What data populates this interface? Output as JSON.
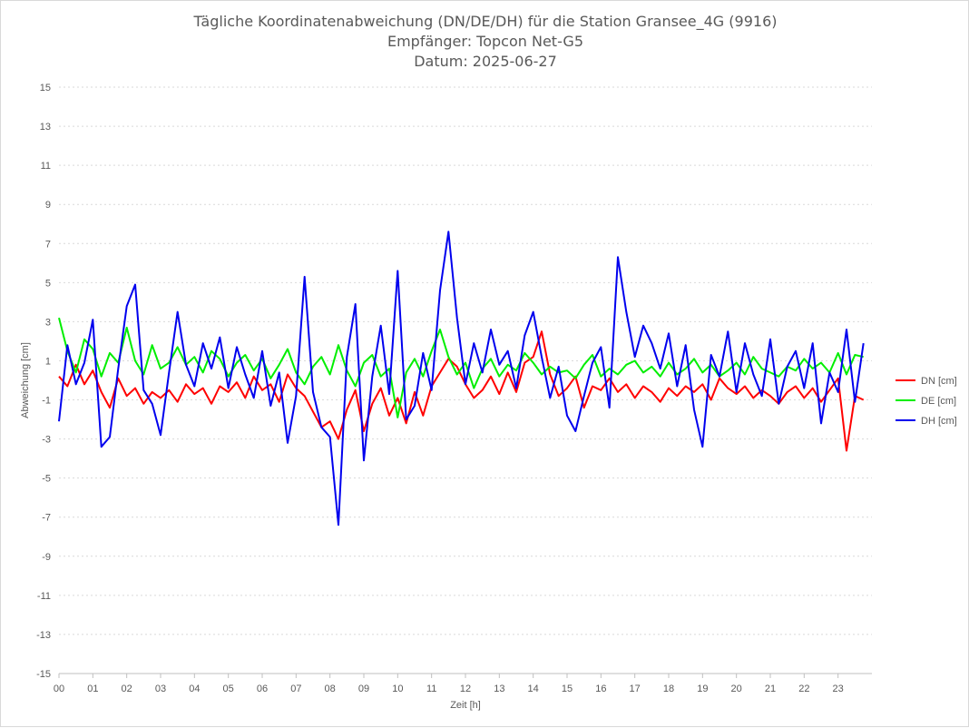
{
  "chart_data": {
    "type": "line",
    "title_lines": [
      "Tägliche Koordinatenabweichung (DN/DE/DH) für die Station Gransee_4G (9916)",
      "Empfänger: Topcon Net-G5",
      "Datum: 2025-06-27"
    ],
    "xlabel": "Zeit [h]",
    "ylabel": "Abweichung [cm]",
    "xlim": [
      0,
      24
    ],
    "ylim": [
      -15,
      15
    ],
    "x_ticks": [
      "00",
      "01",
      "02",
      "03",
      "04",
      "05",
      "06",
      "07",
      "08",
      "09",
      "10",
      "11",
      "12",
      "13",
      "14",
      "15",
      "16",
      "17",
      "18",
      "19",
      "20",
      "21",
      "22",
      "23"
    ],
    "y_ticks": [
      "15",
      "13",
      "11",
      "9",
      "7",
      "5",
      "3",
      "1",
      "-1",
      "-3",
      "-5",
      "-7",
      "-9",
      "-11",
      "-13",
      "-15"
    ],
    "grid": "horizontal dotted",
    "legend_position": "right",
    "x": [
      0.0,
      0.25,
      0.5,
      0.75,
      1.0,
      1.25,
      1.5,
      1.75,
      2.0,
      2.25,
      2.5,
      2.75,
      3.0,
      3.25,
      3.5,
      3.75,
      4.0,
      4.25,
      4.5,
      4.75,
      5.0,
      5.25,
      5.5,
      5.75,
      6.0,
      6.25,
      6.5,
      6.75,
      7.0,
      7.25,
      7.5,
      7.75,
      8.0,
      8.25,
      8.5,
      8.75,
      9.0,
      9.25,
      9.5,
      9.75,
      10.0,
      10.25,
      10.5,
      10.75,
      11.0,
      11.25,
      11.5,
      11.75,
      12.0,
      12.25,
      12.5,
      12.75,
      13.0,
      13.25,
      13.5,
      13.75,
      14.0,
      14.25,
      14.5,
      14.75,
      15.0,
      15.25,
      15.5,
      15.75,
      16.0,
      16.25,
      16.5,
      16.75,
      17.0,
      17.25,
      17.5,
      17.75,
      18.0,
      18.25,
      18.5,
      18.75,
      19.0,
      19.25,
      19.5,
      19.75,
      20.0,
      20.25,
      20.5,
      20.75,
      21.0,
      21.25,
      21.5,
      21.75,
      22.0,
      22.25,
      22.5,
      22.75,
      23.0,
      23.25,
      23.5,
      23.75
    ],
    "series": [
      {
        "name": "DN [cm]",
        "color": "#ff0000",
        "values": [
          0.2,
          -0.3,
          0.8,
          -0.2,
          0.5,
          -0.6,
          -1.4,
          0.1,
          -0.8,
          -0.4,
          -1.2,
          -0.6,
          -0.9,
          -0.5,
          -1.1,
          -0.2,
          -0.7,
          -0.4,
          -1.2,
          -0.3,
          -0.6,
          -0.1,
          -0.9,
          0.2,
          -0.5,
          -0.2,
          -1.1,
          0.3,
          -0.4,
          -0.8,
          -1.6,
          -2.4,
          -2.1,
          -3.0,
          -1.5,
          -0.5,
          -2.6,
          -1.2,
          -0.4,
          -1.8,
          -0.9,
          -2.2,
          -0.6,
          -1.8,
          -0.3,
          0.4,
          1.1,
          0.7,
          -0.2,
          -0.9,
          -0.5,
          0.2,
          -0.7,
          0.4,
          -0.6,
          0.9,
          1.2,
          2.5,
          0.3,
          -0.8,
          -0.4,
          0.2,
          -1.4,
          -0.3,
          -0.5,
          0.1,
          -0.6,
          -0.2,
          -0.9,
          -0.3,
          -0.6,
          -1.1,
          -0.4,
          -0.8,
          -0.3,
          -0.6,
          -0.2,
          -1.0,
          0.1,
          -0.4,
          -0.7,
          -0.3,
          -0.9,
          -0.5,
          -0.8,
          -1.2,
          -0.6,
          -0.3,
          -0.9,
          -0.4,
          -1.1,
          -0.5,
          0.1,
          -3.6,
          -0.8,
          -1.0
        ]
      },
      {
        "name": "DE [cm]",
        "color": "#00ee00",
        "values": [
          3.2,
          1.5,
          0.4,
          2.1,
          1.6,
          0.2,
          1.4,
          0.9,
          2.7,
          1.0,
          0.3,
          1.8,
          0.6,
          0.9,
          1.7,
          0.8,
          1.2,
          0.4,
          1.5,
          1.1,
          0.2,
          0.9,
          1.3,
          0.5,
          1.1,
          0.1,
          0.8,
          1.6,
          0.4,
          -0.2,
          0.7,
          1.2,
          0.3,
          1.8,
          0.5,
          -0.3,
          0.9,
          1.3,
          0.2,
          0.6,
          -1.9,
          0.4,
          1.1,
          0.2,
          1.5,
          2.6,
          1.2,
          0.3,
          0.9,
          -0.4,
          0.6,
          1.1,
          0.2,
          0.8,
          0.5,
          1.4,
          0.9,
          0.3,
          0.7,
          0.4,
          0.5,
          0.1,
          0.8,
          1.3,
          0.2,
          0.6,
          0.3,
          0.8,
          1.0,
          0.4,
          0.7,
          0.2,
          0.9,
          0.3,
          0.6,
          1.1,
          0.4,
          0.8,
          0.2,
          0.5,
          0.9,
          0.3,
          1.2,
          0.6,
          0.4,
          0.2,
          0.7,
          0.5,
          1.1,
          0.6,
          0.9,
          0.4,
          1.4,
          0.3,
          1.3,
          1.2
        ]
      },
      {
        "name": "DH [cm]",
        "color": "#0000ee",
        "values": [
          -2.1,
          1.8,
          -0.2,
          0.9,
          3.1,
          -3.4,
          -2.9,
          0.6,
          3.8,
          4.9,
          -0.5,
          -1.2,
          -2.8,
          0.4,
          3.5,
          0.8,
          -0.3,
          1.9,
          0.6,
          2.2,
          -0.4,
          1.7,
          0.3,
          -0.9,
          1.5,
          -1.3,
          0.4,
          -3.2,
          -0.8,
          5.3,
          -0.6,
          -2.4,
          -2.9,
          -7.4,
          1.2,
          3.9,
          -4.1,
          0.2,
          2.8,
          -0.7,
          5.6,
          -2.0,
          -1.3,
          1.4,
          -0.5,
          4.6,
          7.6,
          3.2,
          -0.2,
          1.9,
          0.4,
          2.6,
          0.8,
          1.5,
          -0.4,
          2.3,
          3.5,
          1.2,
          -0.9,
          0.7,
          -1.8,
          -2.6,
          -0.8,
          0.9,
          1.7,
          -1.4,
          6.3,
          3.5,
          1.2,
          2.8,
          1.9,
          0.6,
          2.4,
          -0.3,
          1.8,
          -1.5,
          -3.4,
          1.3,
          0.2,
          2.5,
          -0.6,
          1.9,
          0.3,
          -0.8,
          2.1,
          -1.2,
          0.7,
          1.5,
          -0.4,
          1.9,
          -2.2,
          0.4,
          -0.6,
          2.6,
          -1.1,
          1.9
        ]
      }
    ]
  }
}
